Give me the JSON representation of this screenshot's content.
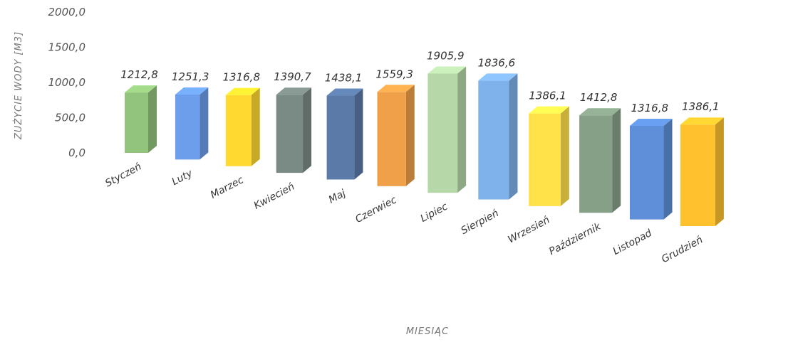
{
  "chart_data": {
    "type": "bar",
    "title": "",
    "xlabel": "MIESIĄC",
    "ylabel": "ZUŻYCIE WODY [M3]",
    "ylim": [
      0,
      2000
    ],
    "y_ticks": [
      "2000,0",
      "1500,0",
      "1000,0",
      "500,0",
      "0,0"
    ],
    "categories": [
      "Styczeń",
      "Luty",
      "Marzec",
      "Kwiecień",
      "Maj",
      "Czerwiec",
      "Lipiec",
      "Sierpień",
      "Wrzesień",
      "Październik",
      "Listopad",
      "Grudzień"
    ],
    "values": [
      1212.8,
      1251.3,
      1316.8,
      1390.7,
      1438.1,
      1559.3,
      1905.9,
      1836.6,
      1386.1,
      1412.8,
      1316.8,
      1386.1
    ],
    "value_labels": [
      "1212,8",
      "1251,3",
      "1316,8",
      "1390,7",
      "1438,1",
      "1559,3",
      "1905,9",
      "1836,6",
      "1386,1",
      "1412,8",
      "1316,8",
      "1386,1"
    ],
    "colors": [
      "#93c47d",
      "#6d9eeb",
      "#ffd92f",
      "#7a8a84",
      "#5b7aa8",
      "#f0a048",
      "#b6d7a8",
      "#7fb2ea",
      "#ffe14a",
      "#86a088",
      "#5f8fd8",
      "#ffc12e"
    ],
    "grid": false,
    "legend": "none",
    "style": "3d-perspective"
  }
}
